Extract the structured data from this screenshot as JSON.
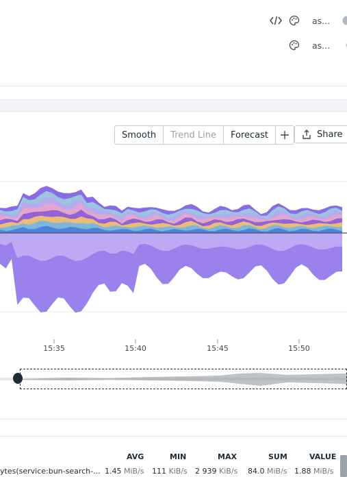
{
  "header": {
    "row1_label": "as...",
    "row2_label": "as..."
  },
  "toolbar": {
    "smooth_label": "Smooth",
    "trend_line_label": "Trend Line",
    "forecast_label": "Forecast",
    "add_label": "+",
    "share_label": "Share"
  },
  "chart_data": {
    "type": "area",
    "x_ticks": [
      "15:35",
      "15:40",
      "15:45",
      "15:50"
    ],
    "series_colors": [
      "#4a7bd8",
      "#6fb6e6",
      "#f5c66a",
      "#8a5bd6",
      "#e8a5c8",
      "#b9a7f0",
      "#9ccfe0",
      "#7c5ce0"
    ],
    "negative_fill": "#8a6be8"
  },
  "legend": {
    "columns": [
      "AVG",
      "MIN",
      "MAX",
      "SUM",
      "VALUE"
    ],
    "row": {
      "name": "ytes(service:bun-search-...",
      "avg_value": "1.45",
      "avg_unit": "MiB/s",
      "min_value": "111",
      "min_unit": "KiB/s",
      "max_value": "2 939",
      "max_unit": "KiB/s",
      "sum_value": "84.0",
      "sum_unit": "MiB/s",
      "value_value": "1.88",
      "value_unit": "MiB/s"
    }
  }
}
